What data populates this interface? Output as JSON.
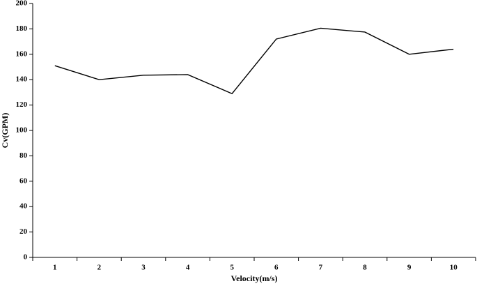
{
  "chart_data": {
    "type": "line",
    "x_label": "Velocity(m/s)",
    "y_label": "Cv(GPM)",
    "categories": [
      "1",
      "2",
      "3",
      "4",
      "5",
      "6",
      "7",
      "8",
      "9",
      "10"
    ],
    "series": [
      {
        "name": "Cv",
        "color": "#000000",
        "values": [
          151,
          140,
          143.5,
          144,
          129,
          172,
          180.5,
          177.5,
          160,
          164
        ]
      }
    ],
    "ylim": [
      0,
      200
    ],
    "yticks": [
      0,
      20,
      40,
      60,
      80,
      100,
      120,
      140,
      160,
      180,
      200
    ],
    "grid": false
  }
}
